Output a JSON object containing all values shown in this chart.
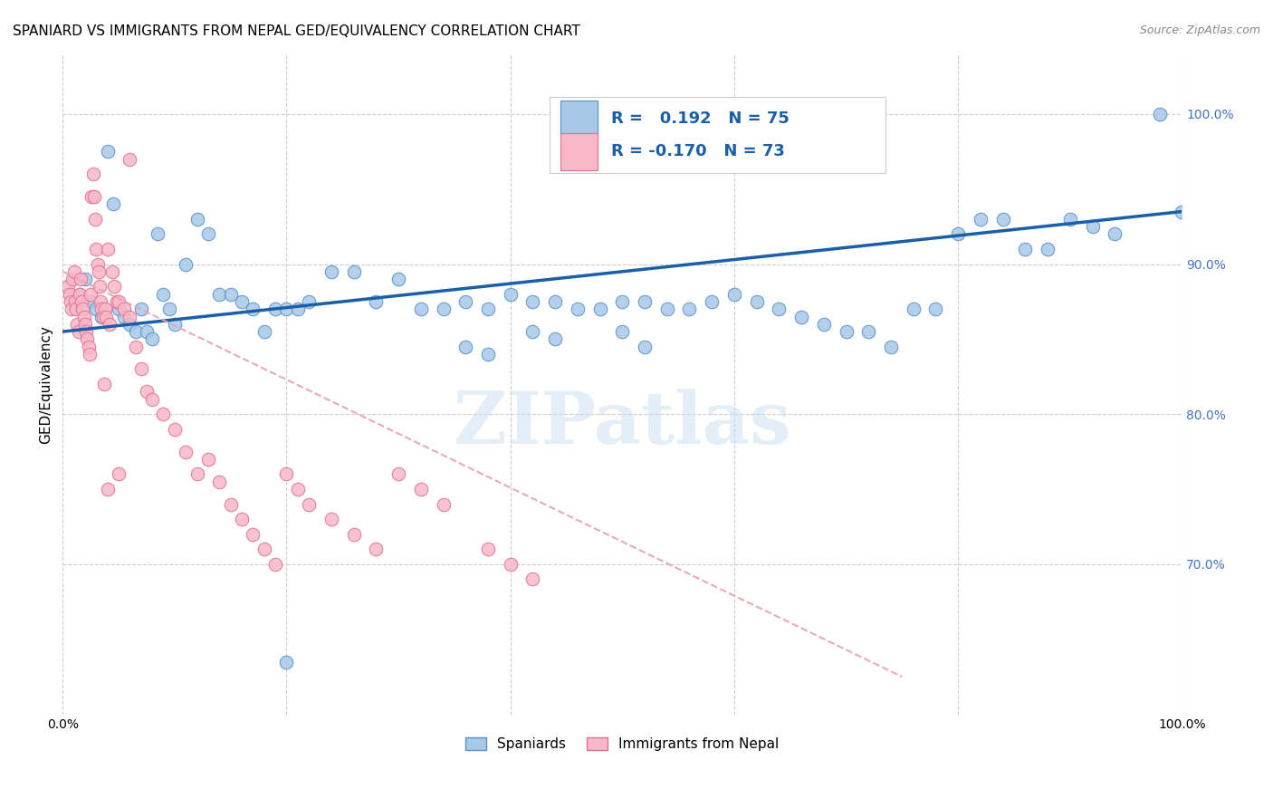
{
  "title": "SPANIARD VS IMMIGRANTS FROM NEPAL GED/EQUIVALENCY CORRELATION CHART",
  "source": "Source: ZipAtlas.com",
  "ylabel": "GED/Equivalency",
  "xlim": [
    0.0,
    1.0
  ],
  "ylim": [
    0.6,
    1.04
  ],
  "y_tick_labels_right": [
    "100.0%",
    "90.0%",
    "80.0%",
    "70.0%"
  ],
  "y_tick_positions_right": [
    1.0,
    0.9,
    0.8,
    0.7
  ],
  "legend_labels": [
    "Spaniards",
    "Immigrants from Nepal"
  ],
  "blue_R": 0.192,
  "blue_N": 75,
  "pink_R": -0.17,
  "pink_N": 73,
  "blue_color": "#a8c8e8",
  "blue_edge_color": "#5590c8",
  "pink_color": "#f8b8c8",
  "pink_edge_color": "#e07090",
  "blue_line_color": "#1a5fa8",
  "pink_line_color": "#e8a0b0",
  "watermark": "ZIPatlas",
  "blue_line_x0": 0.0,
  "blue_line_y0": 0.855,
  "blue_line_x1": 1.0,
  "blue_line_y1": 0.935,
  "pink_line_x0": 0.0,
  "pink_line_y0": 0.895,
  "pink_line_x1": 0.75,
  "pink_line_y1": 0.625,
  "blue_pts_x": [
    0.015,
    0.02,
    0.025,
    0.03,
    0.035,
    0.04,
    0.045,
    0.05,
    0.055,
    0.06,
    0.065,
    0.07,
    0.075,
    0.08,
    0.085,
    0.09,
    0.095,
    0.1,
    0.11,
    0.12,
    0.13,
    0.14,
    0.15,
    0.16,
    0.17,
    0.18,
    0.19,
    0.2,
    0.21,
    0.22,
    0.24,
    0.26,
    0.28,
    0.3,
    0.32,
    0.34,
    0.36,
    0.38,
    0.4,
    0.42,
    0.44,
    0.46,
    0.48,
    0.5,
    0.52,
    0.54,
    0.56,
    0.58,
    0.42,
    0.44,
    0.5,
    0.52,
    0.36,
    0.38,
    0.6,
    0.62,
    0.64,
    0.66,
    0.68,
    0.7,
    0.72,
    0.74,
    0.76,
    0.78,
    0.8,
    0.82,
    0.84,
    0.86,
    0.88,
    0.9,
    0.92,
    0.94,
    0.98,
    1.0,
    0.2
  ],
  "blue_pts_y": [
    0.88,
    0.89,
    0.875,
    0.87,
    0.865,
    0.975,
    0.94,
    0.87,
    0.865,
    0.86,
    0.855,
    0.87,
    0.855,
    0.85,
    0.92,
    0.88,
    0.87,
    0.86,
    0.9,
    0.93,
    0.92,
    0.88,
    0.88,
    0.875,
    0.87,
    0.855,
    0.87,
    0.87,
    0.87,
    0.875,
    0.895,
    0.895,
    0.875,
    0.89,
    0.87,
    0.87,
    0.875,
    0.87,
    0.88,
    0.875,
    0.875,
    0.87,
    0.87,
    0.875,
    0.875,
    0.87,
    0.87,
    0.875,
    0.855,
    0.85,
    0.855,
    0.845,
    0.845,
    0.84,
    0.88,
    0.875,
    0.87,
    0.865,
    0.86,
    0.855,
    0.855,
    0.845,
    0.87,
    0.87,
    0.92,
    0.93,
    0.93,
    0.91,
    0.91,
    0.93,
    0.925,
    0.92,
    1.0,
    0.935,
    0.635
  ],
  "pink_pts_x": [
    0.005,
    0.006,
    0.007,
    0.008,
    0.009,
    0.01,
    0.011,
    0.012,
    0.013,
    0.014,
    0.015,
    0.016,
    0.017,
    0.018,
    0.019,
    0.02,
    0.021,
    0.022,
    0.023,
    0.024,
    0.025,
    0.026,
    0.027,
    0.028,
    0.029,
    0.03,
    0.031,
    0.032,
    0.033,
    0.034,
    0.035,
    0.036,
    0.037,
    0.038,
    0.039,
    0.04,
    0.042,
    0.044,
    0.046,
    0.048,
    0.05,
    0.055,
    0.06,
    0.065,
    0.07,
    0.075,
    0.08,
    0.09,
    0.1,
    0.11,
    0.12,
    0.13,
    0.14,
    0.15,
    0.16,
    0.17,
    0.18,
    0.19,
    0.2,
    0.21,
    0.22,
    0.24,
    0.26,
    0.28,
    0.3,
    0.32,
    0.34,
    0.38,
    0.4,
    0.42,
    0.06,
    0.05,
    0.04
  ],
  "pink_pts_y": [
    0.885,
    0.88,
    0.875,
    0.87,
    0.89,
    0.895,
    0.875,
    0.87,
    0.86,
    0.855,
    0.88,
    0.89,
    0.875,
    0.87,
    0.865,
    0.86,
    0.855,
    0.85,
    0.845,
    0.84,
    0.88,
    0.945,
    0.96,
    0.945,
    0.93,
    0.91,
    0.9,
    0.895,
    0.885,
    0.875,
    0.87,
    0.865,
    0.82,
    0.87,
    0.865,
    0.91,
    0.86,
    0.895,
    0.885,
    0.875,
    0.875,
    0.87,
    0.865,
    0.845,
    0.83,
    0.815,
    0.81,
    0.8,
    0.79,
    0.775,
    0.76,
    0.77,
    0.755,
    0.74,
    0.73,
    0.72,
    0.71,
    0.7,
    0.76,
    0.75,
    0.74,
    0.73,
    0.72,
    0.71,
    0.76,
    0.75,
    0.74,
    0.71,
    0.7,
    0.69,
    0.97,
    0.76,
    0.75
  ]
}
